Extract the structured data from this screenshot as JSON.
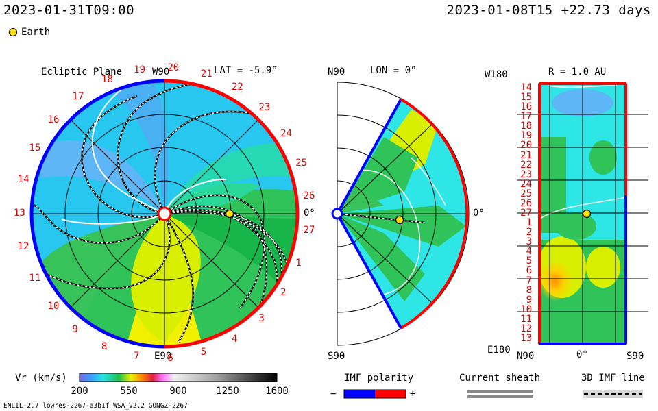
{
  "header": {
    "model_time": "2023-01-31T09:00",
    "ref_time": "2023-01-08T15 +22.73 days",
    "earth_legend": "Earth"
  },
  "colors": {
    "earth_marker": "#ffe000",
    "positive_polarity": "#ff0000",
    "negative_polarity": "#0000ff",
    "current_sheath": "#888888"
  },
  "chart_data": [
    {
      "type": "heatmap",
      "title": "Ecliptic Plane",
      "subtitle": "LAT = -5.9°",
      "quantity": "Vr (km/s)",
      "axis_labels": {
        "top": "W90",
        "bottom": "E90",
        "right": "0°"
      },
      "carrington_rotation_labels": [
        "19",
        "20",
        "21",
        "22",
        "23",
        "24",
        "25",
        "26",
        "27",
        "1",
        "2",
        "3",
        "4",
        "5",
        "6",
        "7",
        "8",
        "9",
        "10",
        "11",
        "12",
        "13",
        "14",
        "15",
        "16",
        "17",
        "18"
      ],
      "range_au": [
        0,
        2
      ]
    },
    {
      "type": "heatmap",
      "title": "LON = 0°",
      "quantity": "Vr (km/s)",
      "axis_labels": {
        "top": "N90",
        "bottom": "S90",
        "right": "0°"
      },
      "range_au": [
        0,
        2
      ]
    },
    {
      "type": "heatmap",
      "title": "R = 1.0 AU",
      "quantity": "Vr (km/s)",
      "y_labels": [
        "14",
        "15",
        "16",
        "17",
        "18",
        "19",
        "20",
        "21",
        "22",
        "23",
        "24",
        "25",
        "26",
        "27",
        "1",
        "2",
        "3",
        "4",
        "5",
        "6",
        "7",
        "8",
        "9",
        "10",
        "11",
        "12",
        "13"
      ],
      "y_top": "W180",
      "y_bottom": "E180",
      "x_labels": [
        "N90",
        "0°",
        "S90"
      ]
    }
  ],
  "colorbar": {
    "title": "Vr (km/s)",
    "min": 200,
    "max": 1600,
    "ticks": [
      "200",
      "550",
      "900",
      "1250",
      "1600"
    ]
  },
  "legends": {
    "imf_title": "IMF polarity",
    "minus": "−",
    "plus": "+",
    "sheath_title": "Current sheath",
    "imf3d_title": "3D IMF line"
  },
  "footer": {
    "left": "ENLIL-2.7 lowres-2267-a3b1f WSA_V2.2 GONGZ-2267"
  }
}
